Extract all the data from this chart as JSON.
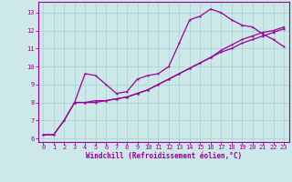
{
  "xlabel": "Windchill (Refroidissement éolien,°C)",
  "bg_color": "#cce8e8",
  "grid_color": "#aad4d4",
  "line_color": "#990099",
  "xlim": [
    -0.5,
    23.5
  ],
  "ylim": [
    5.8,
    13.6
  ],
  "xticks": [
    0,
    1,
    2,
    3,
    4,
    5,
    6,
    7,
    8,
    9,
    10,
    11,
    12,
    13,
    14,
    15,
    16,
    17,
    18,
    19,
    20,
    21,
    22,
    23
  ],
  "yticks": [
    6,
    7,
    8,
    9,
    10,
    11,
    12,
    13
  ],
  "line1": {
    "x": [
      0,
      1,
      2,
      3,
      4,
      5,
      6,
      7,
      8,
      9,
      10,
      11,
      12,
      13,
      14,
      15,
      16,
      17,
      18,
      19,
      20,
      21,
      22,
      23
    ],
    "y": [
      6.2,
      6.2,
      7.0,
      8.0,
      9.6,
      9.5,
      9.0,
      8.5,
      8.6,
      9.3,
      9.5,
      9.6,
      10.0,
      11.3,
      12.6,
      12.8,
      13.2,
      13.0,
      12.6,
      12.3,
      12.2,
      11.8,
      11.5,
      11.1
    ]
  },
  "line2": {
    "x": [
      0,
      1,
      2,
      3,
      4,
      5,
      6,
      7,
      8,
      9,
      10,
      11,
      12,
      13,
      14,
      15,
      16,
      17,
      18,
      19,
      20,
      21,
      22,
      23
    ],
    "y": [
      6.2,
      6.2,
      7.0,
      8.0,
      8.0,
      8.0,
      8.1,
      8.2,
      8.3,
      8.5,
      8.7,
      9.0,
      9.3,
      9.6,
      9.9,
      10.2,
      10.5,
      10.9,
      11.2,
      11.5,
      11.7,
      11.9,
      12.0,
      12.2
    ]
  },
  "line3": {
    "x": [
      3,
      4,
      5,
      6,
      7,
      8,
      9,
      10,
      11,
      12,
      13,
      14,
      15,
      16,
      17,
      18,
      19,
      20,
      21,
      22,
      23
    ],
    "y": [
      8.0,
      8.0,
      8.1,
      8.1,
      8.2,
      8.3,
      8.5,
      8.7,
      9.0,
      9.3,
      9.6,
      9.9,
      10.2,
      10.5,
      10.8,
      11.0,
      11.3,
      11.5,
      11.7,
      11.9,
      12.1
    ]
  },
  "tick_fontsize": 5.0,
  "xlabel_fontsize": 5.5,
  "marker_size": 2.5,
  "line_width": 0.9
}
